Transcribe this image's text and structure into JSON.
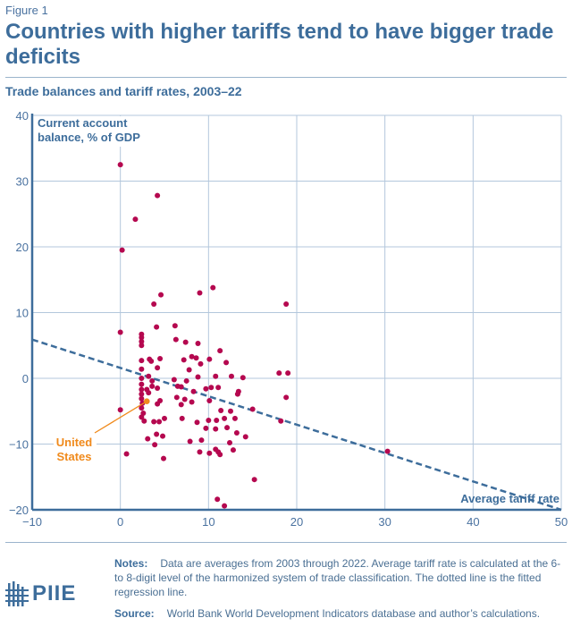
{
  "figure_label": "Figure 1",
  "title": "Countries with higher tariffs tend to have bigger trade deficits",
  "subtitle": "Trade balances and tariff rates, 2003–22",
  "notes_label": "Notes:",
  "notes_text": "Data are averages from 2003 through 2022. Average tariff rate is calculated at the 6- to 8-digit level of the harmonized system of trade classification. The dotted line is the fitted regression line.",
  "source_label": "Source:",
  "source_text": "World Bank World Development Indicators database and author’s calculations.",
  "logo_text": "PIIE",
  "colors": {
    "point": "#b5084f",
    "highlight": "#f08a1c",
    "axis": "#3d6d9b",
    "grid": "#b3c7dc",
    "regression": "#3d6d9b"
  },
  "chart_data": {
    "type": "scatter",
    "title": "Trade balances and tariff rates, 2003–22",
    "xlabel": "Average tariff rate",
    "ylabel": "Current account balance, % of GDP",
    "ylabel_lines": [
      "Current account",
      "balance, % of GDP"
    ],
    "xlim": [
      -10,
      50
    ],
    "ylim": [
      -20,
      40
    ],
    "xticks": [
      -10,
      0,
      10,
      20,
      30,
      40,
      50
    ],
    "yticks": [
      -20,
      -10,
      0,
      10,
      20,
      30,
      40
    ],
    "grid": true,
    "regression": {
      "x": [
        -10,
        50
      ],
      "y": [
        5.9,
        -20.0
      ],
      "style": "dashed"
    },
    "highlight": {
      "label_lines": [
        "United",
        "States"
      ],
      "x": 3.0,
      "y": -3.5
    },
    "points": [
      [
        0.0,
        32.5
      ],
      [
        4.2,
        27.8
      ],
      [
        1.7,
        24.2
      ],
      [
        0.2,
        19.5
      ],
      [
        4.6,
        12.7
      ],
      [
        10.5,
        13.8
      ],
      [
        9.0,
        13.0
      ],
      [
        3.8,
        11.3
      ],
      [
        18.8,
        11.3
      ],
      [
        0.0,
        7.0
      ],
      [
        2.4,
        6.7
      ],
      [
        2.4,
        6.2
      ],
      [
        2.4,
        5.6
      ],
      [
        2.4,
        5.0
      ],
      [
        6.2,
        8.0
      ],
      [
        4.1,
        7.8
      ],
      [
        7.4,
        5.5
      ],
      [
        8.8,
        5.3
      ],
      [
        6.3,
        5.9
      ],
      [
        2.4,
        2.7
      ],
      [
        3.3,
        2.9
      ],
      [
        3.5,
        2.6
      ],
      [
        4.5,
        3.0
      ],
      [
        4.2,
        1.6
      ],
      [
        2.4,
        1.4
      ],
      [
        3.2,
        0.3
      ],
      [
        7.2,
        2.8
      ],
      [
        8.1,
        3.3
      ],
      [
        8.6,
        3.1
      ],
      [
        7.8,
        1.3
      ],
      [
        9.1,
        2.2
      ],
      [
        10.1,
        2.9
      ],
      [
        11.3,
        4.2
      ],
      [
        12.0,
        2.4
      ],
      [
        8.8,
        0.2
      ],
      [
        10.8,
        0.3
      ],
      [
        12.6,
        0.3
      ],
      [
        11.1,
        -1.4
      ],
      [
        13.9,
        0.1
      ],
      [
        13.4,
        -2.0
      ],
      [
        18.0,
        0.8
      ],
      [
        19.0,
        0.8
      ],
      [
        18.8,
        -2.9
      ],
      [
        2.4,
        0.0
      ],
      [
        2.4,
        -0.9
      ],
      [
        2.4,
        -1.7
      ],
      [
        2.4,
        -2.4
      ],
      [
        2.4,
        -3.1
      ],
      [
        2.5,
        -3.8
      ],
      [
        2.4,
        -4.5
      ],
      [
        2.6,
        -5.3
      ],
      [
        2.4,
        -5.9
      ],
      [
        2.7,
        -6.5
      ],
      [
        3.6,
        -0.4
      ],
      [
        3.6,
        -1.2
      ],
      [
        4.2,
        -1.5
      ],
      [
        3.0,
        -1.7
      ],
      [
        3.2,
        -2.2
      ],
      [
        4.2,
        -3.9
      ],
      [
        4.5,
        -3.4
      ],
      [
        3.8,
        -6.6
      ],
      [
        4.4,
        -6.6
      ],
      [
        5.0,
        -6.1
      ],
      [
        3.1,
        -9.2
      ],
      [
        4.1,
        -8.5
      ],
      [
        4.8,
        -8.8
      ],
      [
        3.9,
        -10.1
      ],
      [
        4.9,
        -12.2
      ],
      [
        0.7,
        -11.5
      ],
      [
        6.1,
        -0.2
      ],
      [
        6.5,
        -1.2
      ],
      [
        6.9,
        -1.3
      ],
      [
        6.4,
        -2.9
      ],
      [
        7.5,
        -0.4
      ],
      [
        8.3,
        -2.0
      ],
      [
        7.3,
        -3.2
      ],
      [
        6.9,
        -4.0
      ],
      [
        8.1,
        -3.6
      ],
      [
        7.0,
        -6.1
      ],
      [
        7.9,
        -9.6
      ],
      [
        8.7,
        -6.7
      ],
      [
        9.7,
        -1.6
      ],
      [
        10.3,
        -1.4
      ],
      [
        10.1,
        -3.4
      ],
      [
        10.0,
        -6.4
      ],
      [
        10.9,
        -6.4
      ],
      [
        11.8,
        -6.1
      ],
      [
        12.5,
        -5.0
      ],
      [
        13.0,
        -6.1
      ],
      [
        13.3,
        -2.4
      ],
      [
        11.4,
        -4.9
      ],
      [
        9.7,
        -7.6
      ],
      [
        10.8,
        -7.7
      ],
      [
        12.1,
        -7.5
      ],
      [
        12.4,
        -9.8
      ],
      [
        9.2,
        -9.4
      ],
      [
        13.2,
        -8.3
      ],
      [
        14.2,
        -8.9
      ],
      [
        15.0,
        -4.7
      ],
      [
        18.2,
        -6.5
      ],
      [
        9.0,
        -11.2
      ],
      [
        10.1,
        -11.4
      ],
      [
        10.8,
        -10.8
      ],
      [
        11.1,
        -11.2
      ],
      [
        11.3,
        -11.6
      ],
      [
        12.8,
        -10.9
      ],
      [
        15.2,
        -15.4
      ],
      [
        11.0,
        -18.4
      ],
      [
        11.8,
        -19.4
      ],
      [
        30.3,
        -11.1
      ],
      [
        0.0,
        -4.8
      ]
    ]
  }
}
